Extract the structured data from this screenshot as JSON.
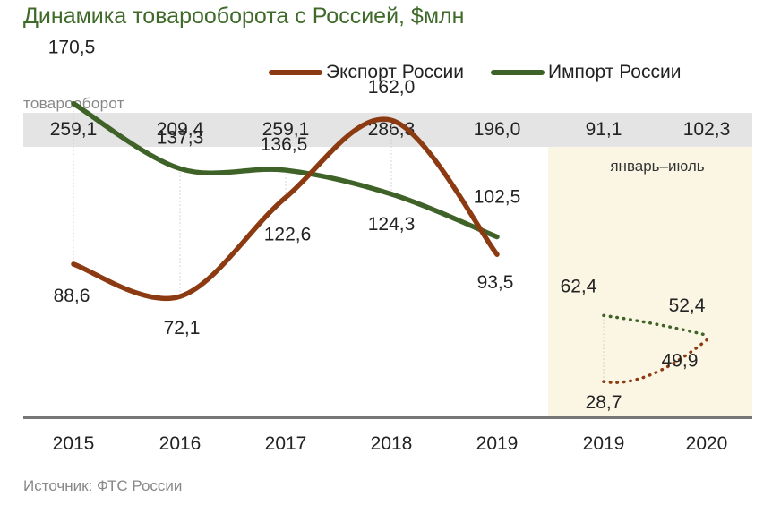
{
  "title": "Динамика товарооборота с Россией, $млн",
  "legend": {
    "export_label": "Экспорт России",
    "import_label": "Импорт России"
  },
  "colors": {
    "export": "#8b3a12",
    "import": "#3f6228",
    "period_bg": "#fbf6e4",
    "total_band": "#e4e4e4"
  },
  "total_label": "товарооборот",
  "period_label": "январь–июль",
  "source": "Источник: ФТС России",
  "chart_data": {
    "type": "line",
    "title": "Динамика товарооборота с Россией, $млн",
    "categories": [
      "2015",
      "2016",
      "2017",
      "2018",
      "2019",
      "2019",
      "2020"
    ],
    "series": [
      {
        "name": "Экспорт России",
        "values": [
          88.6,
          72.1,
          122.6,
          162.0,
          93.5,
          28.7,
          49.9
        ],
        "labels": [
          "88,6",
          "72,1",
          "122,6",
          "162,0",
          "93,5",
          "28,7",
          "49,9"
        ]
      },
      {
        "name": "Импорт России",
        "values": [
          170.5,
          137.3,
          136.5,
          124.3,
          102.5,
          62.4,
          52.4
        ],
        "labels": [
          "170,5",
          "137,3",
          "136,5",
          "124,3",
          "102,5",
          "62,4",
          "52,4"
        ]
      }
    ],
    "totals_label": "товарооборот",
    "totals": [
      "259,1",
      "209,4",
      "259,1",
      "286,3",
      "196,0",
      "91,1",
      "102,3"
    ],
    "period_note": "январь–июль",
    "partial_period_categories": [
      "2019",
      "2020"
    ],
    "line_style": {
      "annual": "solid smooth",
      "partial_period": "dotted"
    },
    "ylim": [
      0,
      190
    ],
    "grid": false,
    "legend_position": "top-right"
  }
}
